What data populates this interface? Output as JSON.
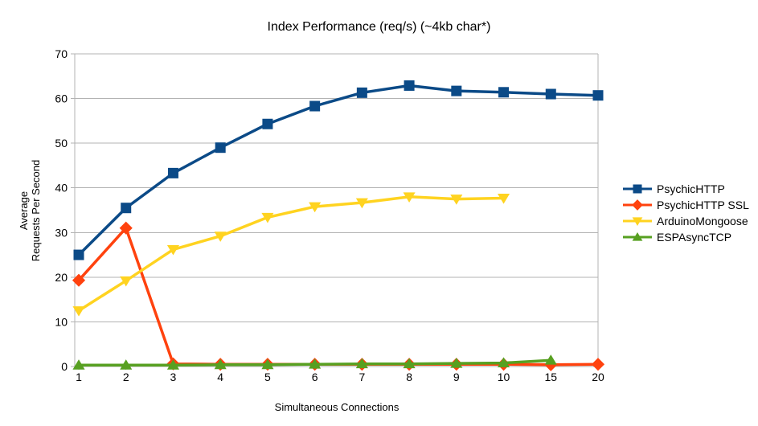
{
  "chart_data": {
    "type": "line",
    "title": "Index Performance (req/s) (~4kb char*)",
    "xlabel": "Simultaneous Connections",
    "ylabel": "Average Requests Per Second",
    "ylabel_lines": [
      "Average",
      "Requests Per Second"
    ],
    "x_categories": [
      "1",
      "2",
      "3",
      "4",
      "5",
      "6",
      "7",
      "8",
      "9",
      "10",
      "15",
      "20"
    ],
    "ylim": [
      0,
      70
    ],
    "ytick_step": 10,
    "yticks": [
      0,
      10,
      20,
      30,
      40,
      50,
      60,
      70
    ],
    "grid": "horizontal",
    "legend_position": "right",
    "colors": {
      "grid": "#b3b3b3",
      "text": "#000000",
      "background": "#ffffff"
    },
    "series": [
      {
        "name": "PsychicHTTP",
        "color": "#0b4a87",
        "marker": "square",
        "values": [
          25,
          35.5,
          43.3,
          49,
          54.3,
          58.3,
          61.3,
          62.9,
          61.7,
          61.4,
          61,
          60.7
        ]
      },
      {
        "name": "PsychicHTTP SSL",
        "color": "#ff420e",
        "marker": "diamond",
        "values": [
          19.3,
          31,
          0.6,
          0.5,
          0.5,
          0.5,
          0.5,
          0.5,
          0.5,
          0.5,
          0.4,
          0.5
        ]
      },
      {
        "name": "ArduinoMongoose",
        "color": "#ffd320",
        "marker": "triangle-down",
        "values": [
          12.5,
          19.2,
          26.2,
          29.2,
          33.4,
          35.8,
          36.7,
          38,
          37.5,
          37.7,
          null,
          null
        ]
      },
      {
        "name": "ESPAsyncTCP",
        "color": "#57a021",
        "marker": "triangle-up",
        "values": [
          0.3,
          0.3,
          0.3,
          0.4,
          0.4,
          0.5,
          0.6,
          0.6,
          0.7,
          0.8,
          1.4,
          null
        ]
      }
    ]
  }
}
